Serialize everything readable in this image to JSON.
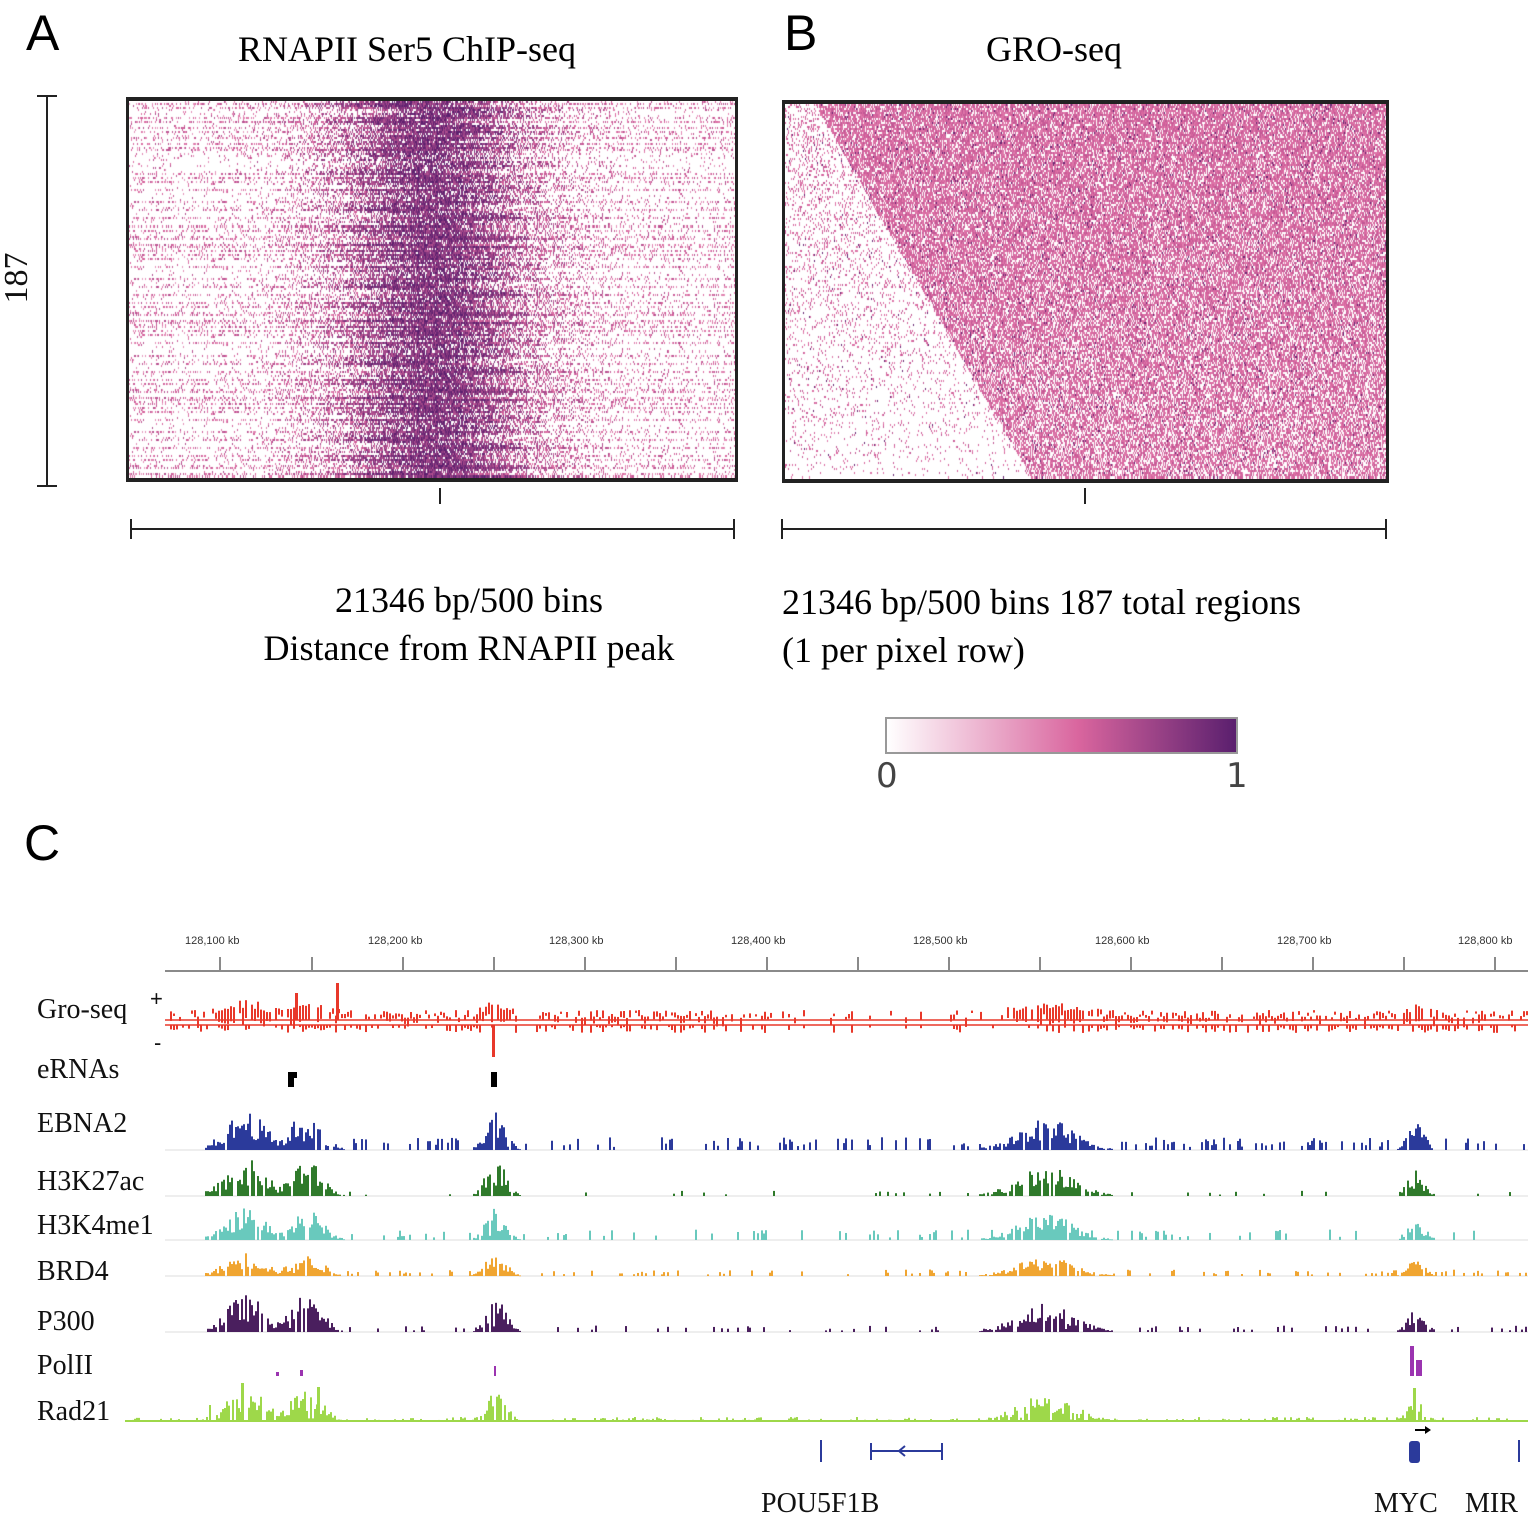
{
  "panel_a": {
    "letter": "A",
    "title": "RNAPII Ser5 ChIP-seq",
    "row_count_label": "187",
    "caption_line1": "21346 bp/500 bins",
    "caption_line2": "Distance from RNAPII peak"
  },
  "panel_b": {
    "letter": "B",
    "title": "GRO-seq",
    "caption_line1": "21346 bp/500 bins 187 total regions",
    "caption_line2": "(1 per pixel row)"
  },
  "colorbar": {
    "min_label": "0",
    "max_label": "1",
    "color_low": "#ffffff",
    "color_mid": "#d9659e",
    "color_high": "#5a1f6e"
  },
  "panel_c": {
    "letter": "C",
    "ruler": {
      "labels": [
        "128,100 kb",
        "128,200 kb",
        "128,300 kb",
        "128,400 kb",
        "128,500 kb",
        "128,600 kb",
        "128,700 kb",
        "128,800 kb"
      ]
    },
    "strand_plus": "+",
    "strand_minus": "-",
    "tracks": [
      {
        "label": "Gro-seq",
        "color": "#e8382a"
      },
      {
        "label": "eRNAs",
        "color": "#000000"
      },
      {
        "label": "EBNA2",
        "color": "#2b3a9b"
      },
      {
        "label": "H3K27ac",
        "color": "#2f7a2b"
      },
      {
        "label": "H3K4me1",
        "color": "#69c9bd"
      },
      {
        "label": "BRD4",
        "color": "#f0a531"
      },
      {
        "label": "P300",
        "color": "#4a1f5e"
      },
      {
        "label": "PolII",
        "color": "#9b34b0"
      },
      {
        "label": "Rad21",
        "color": "#9ed84a"
      }
    ],
    "genes": [
      "POU5F1B",
      "MYC",
      "MIR"
    ],
    "gene_color": "#2b3a9b"
  }
}
